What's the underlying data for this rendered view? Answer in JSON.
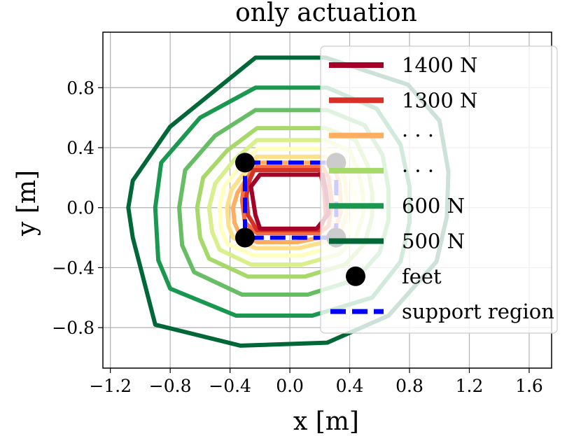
{
  "chart_data": {
    "type": "line",
    "title": "only actuation",
    "xlabel": "x [m]",
    "ylabel": "y [m]",
    "xlim": [
      -1.25,
      1.75
    ],
    "ylim": [
      -1.07,
      1.17
    ],
    "grid": true,
    "legend_position": "right",
    "x_ticks": [
      -1.2,
      -0.8,
      -0.4,
      0.0,
      0.4,
      0.8,
      1.2,
      1.6
    ],
    "x_tick_labels": [
      "−1.2",
      "−0.8",
      "−0.4",
      "0.0",
      "0.4",
      "0.8",
      "1.2",
      "1.6"
    ],
    "y_ticks": [
      -0.8,
      -0.4,
      0.0,
      0.4,
      0.8
    ],
    "y_tick_labels": [
      "−0.8",
      "−0.4",
      "0.0",
      "0.4",
      "0.8"
    ],
    "series": [
      {
        "name": "500 N",
        "color": "#006837",
        "points": [
          [
            -0.23,
            1.0
          ],
          [
            0.24,
            1.0
          ],
          [
            0.79,
            0.82
          ],
          [
            1.0,
            0.58
          ],
          [
            1.06,
            0.24
          ],
          [
            1.05,
            -0.06
          ],
          [
            0.98,
            -0.36
          ],
          [
            0.66,
            -0.72
          ],
          [
            0.25,
            -0.9
          ],
          [
            -0.33,
            -0.92
          ],
          [
            -0.9,
            -0.78
          ],
          [
            -1.05,
            -0.2
          ],
          [
            -1.08,
            0.0
          ],
          [
            -1.05,
            0.18
          ],
          [
            -0.8,
            0.54
          ]
        ]
      },
      {
        "name": "600 N",
        "color": "#1a9850",
        "points": [
          [
            -0.23,
            0.8
          ],
          [
            0.25,
            0.8
          ],
          [
            0.58,
            0.66
          ],
          [
            0.74,
            0.42
          ],
          [
            0.8,
            0.14
          ],
          [
            0.8,
            -0.1
          ],
          [
            0.74,
            -0.36
          ],
          [
            0.55,
            -0.6
          ],
          [
            0.15,
            -0.72
          ],
          [
            -0.36,
            -0.72
          ],
          [
            -0.8,
            -0.54
          ],
          [
            -0.88,
            -0.35
          ],
          [
            -0.9,
            0.0
          ],
          [
            -0.86,
            0.3
          ],
          [
            -0.6,
            0.6
          ]
        ]
      },
      {
        "name": "",
        "color": "#66bd63",
        "points": [
          [
            -0.23,
            0.65
          ],
          [
            0.25,
            0.65
          ],
          [
            0.5,
            0.55
          ],
          [
            0.62,
            0.35
          ],
          [
            0.66,
            0.12
          ],
          [
            0.66,
            -0.08
          ],
          [
            0.6,
            -0.3
          ],
          [
            0.44,
            -0.48
          ],
          [
            0.12,
            -0.58
          ],
          [
            -0.32,
            -0.58
          ],
          [
            -0.64,
            -0.43
          ],
          [
            -0.72,
            -0.25
          ],
          [
            -0.74,
            0.0
          ],
          [
            -0.7,
            0.25
          ],
          [
            -0.5,
            0.48
          ]
        ]
      },
      {
        "name": "",
        "color": "#a6d96a",
        "points": [
          [
            -0.22,
            0.53
          ],
          [
            0.24,
            0.53
          ],
          [
            0.44,
            0.45
          ],
          [
            0.52,
            0.28
          ],
          [
            0.55,
            0.1
          ],
          [
            0.55,
            -0.06
          ],
          [
            0.5,
            -0.24
          ],
          [
            0.37,
            -0.38
          ],
          [
            0.1,
            -0.46
          ],
          [
            -0.28,
            -0.46
          ],
          [
            -0.54,
            -0.34
          ],
          [
            -0.6,
            -0.2
          ],
          [
            -0.62,
            0.0
          ],
          [
            -0.58,
            0.2
          ],
          [
            -0.42,
            0.38
          ]
        ]
      },
      {
        "name": "",
        "color": "#d9ef8b",
        "points": [
          [
            -0.22,
            0.45
          ],
          [
            0.24,
            0.45
          ],
          [
            0.4,
            0.38
          ],
          [
            0.46,
            0.24
          ],
          [
            0.49,
            0.08
          ],
          [
            0.49,
            -0.05
          ],
          [
            0.44,
            -0.2
          ],
          [
            0.33,
            -0.31
          ],
          [
            0.08,
            -0.38
          ],
          [
            -0.26,
            -0.38
          ],
          [
            -0.47,
            -0.28
          ],
          [
            -0.52,
            -0.16
          ],
          [
            -0.54,
            0.0
          ],
          [
            -0.5,
            0.16
          ],
          [
            -0.37,
            0.32
          ]
        ]
      },
      {
        "name": "",
        "color": "#ffffbf",
        "points": [
          [
            -0.22,
            0.39
          ],
          [
            0.24,
            0.39
          ],
          [
            0.36,
            0.33
          ],
          [
            0.41,
            0.21
          ],
          [
            0.43,
            0.07
          ],
          [
            0.43,
            -0.04
          ],
          [
            0.39,
            -0.17
          ],
          [
            0.3,
            -0.26
          ],
          [
            0.07,
            -0.32
          ],
          [
            -0.24,
            -0.32
          ],
          [
            -0.42,
            -0.24
          ],
          [
            -0.46,
            -0.14
          ],
          [
            -0.47,
            0.0
          ],
          [
            -0.44,
            0.14
          ],
          [
            -0.33,
            0.28
          ]
        ]
      },
      {
        "name": "",
        "color": "#fee08b",
        "points": [
          [
            -0.22,
            0.34
          ],
          [
            0.24,
            0.34
          ],
          [
            0.33,
            0.29
          ],
          [
            0.37,
            0.18
          ],
          [
            0.38,
            0.06
          ],
          [
            0.38,
            -0.04
          ],
          [
            0.35,
            -0.14
          ],
          [
            0.27,
            -0.22
          ],
          [
            0.06,
            -0.27
          ],
          [
            -0.23,
            -0.27
          ],
          [
            -0.38,
            -0.2
          ],
          [
            -0.41,
            -0.12
          ],
          [
            -0.42,
            0.0
          ],
          [
            -0.39,
            0.12
          ],
          [
            -0.3,
            0.24
          ]
        ]
      },
      {
        "name": "",
        "color": "#fdae61",
        "points": [
          [
            -0.22,
            0.3
          ],
          [
            0.24,
            0.3
          ],
          [
            0.3,
            0.26
          ],
          [
            0.33,
            0.16
          ],
          [
            0.34,
            0.05
          ],
          [
            0.34,
            -0.03
          ],
          [
            0.31,
            -0.12
          ],
          [
            0.25,
            -0.19
          ],
          [
            0.05,
            -0.23
          ],
          [
            -0.22,
            -0.23
          ],
          [
            -0.34,
            -0.17
          ],
          [
            -0.37,
            -0.1
          ],
          [
            -0.38,
            0.0
          ],
          [
            -0.35,
            0.1
          ],
          [
            -0.28,
            0.21
          ]
        ]
      },
      {
        "name": "",
        "color": "#f46d43",
        "points": [
          [
            -0.22,
            0.27
          ],
          [
            0.22,
            0.27
          ],
          [
            0.26,
            0.2
          ],
          [
            0.28,
            0.04
          ],
          [
            0.26,
            -0.12
          ],
          [
            0.2,
            -0.17
          ],
          [
            -0.22,
            -0.17
          ],
          [
            -0.3,
            -0.1
          ],
          [
            -0.32,
            0.05
          ],
          [
            -0.3,
            0.18
          ]
        ]
      },
      {
        "name": "1300 N",
        "color": "#d73027",
        "points": [
          [
            -0.24,
            0.25
          ],
          [
            0.2,
            0.25
          ],
          [
            0.23,
            0.12
          ],
          [
            0.24,
            -0.05
          ],
          [
            0.2,
            -0.15
          ],
          [
            -0.22,
            -0.15
          ],
          [
            -0.28,
            -0.05
          ],
          [
            -0.29,
            0.08
          ],
          [
            -0.27,
            0.18
          ]
        ]
      },
      {
        "name": "1400 N",
        "color": "#a50026",
        "points": [
          [
            -0.2,
            0.22
          ],
          [
            0.22,
            0.22
          ],
          [
            0.24,
            0.12
          ],
          [
            0.26,
            -0.04
          ],
          [
            0.18,
            -0.14
          ],
          [
            -0.2,
            -0.14
          ],
          [
            -0.23,
            -0.05
          ],
          [
            -0.26,
            0.14
          ]
        ]
      }
    ],
    "feet": [
      [
        -0.3,
        0.3
      ],
      [
        0.31,
        0.3
      ],
      [
        0.31,
        -0.2
      ],
      [
        -0.3,
        -0.2
      ]
    ],
    "support_region": [
      [
        -0.3,
        0.3
      ],
      [
        0.31,
        0.3
      ],
      [
        0.31,
        -0.2
      ],
      [
        -0.3,
        -0.2
      ],
      [
        -0.3,
        0.3
      ]
    ],
    "legend": [
      {
        "label": "1400 N",
        "kind": "line",
        "color": "#a50026"
      },
      {
        "label": "1300 N",
        "kind": "line",
        "color": "#d73027"
      },
      {
        "label": "· · ·",
        "kind": "line",
        "color": "#fdae61"
      },
      {
        "label": "· · ·",
        "kind": "line",
        "color": "#a6d96a"
      },
      {
        "label": "600 N",
        "kind": "line",
        "color": "#1a9850"
      },
      {
        "label": "500 N",
        "kind": "line",
        "color": "#006837"
      },
      {
        "label": "feet",
        "kind": "marker",
        "color": "#000000"
      },
      {
        "label": "support region",
        "kind": "dashed",
        "color": "#0000ff"
      }
    ]
  }
}
